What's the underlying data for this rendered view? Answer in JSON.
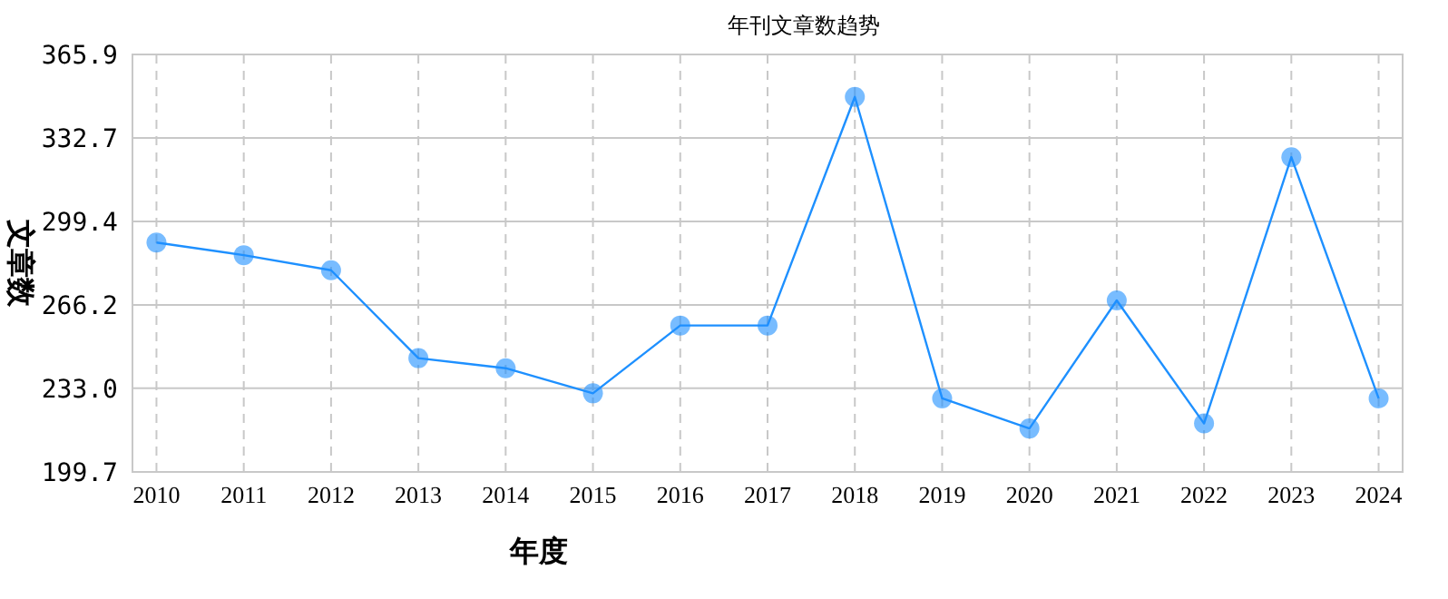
{
  "chart_data": {
    "type": "line",
    "title": "年刊文章数趋势",
    "xlabel": "年度",
    "ylabel": "文章数",
    "categories": [
      "2010",
      "2011",
      "2012",
      "2013",
      "2014",
      "2015",
      "2016",
      "2017",
      "2018",
      "2019",
      "2020",
      "2021",
      "2022",
      "2023",
      "2024"
    ],
    "series": [
      {
        "color": "#1e90ff",
        "values": [
          291,
          286,
          280,
          245,
          241,
          231,
          258,
          258,
          349,
          229,
          217,
          268,
          219,
          325,
          229
        ]
      }
    ],
    "ylim": [
      199.7,
      365.9
    ],
    "yticks": [
      199.7,
      {
        "value": 233,
        "label": "233.0"
      },
      266.2,
      299.4,
      332.7,
      365.9
    ],
    "grid": true,
    "marker": "circle",
    "line_style": "solid"
  }
}
